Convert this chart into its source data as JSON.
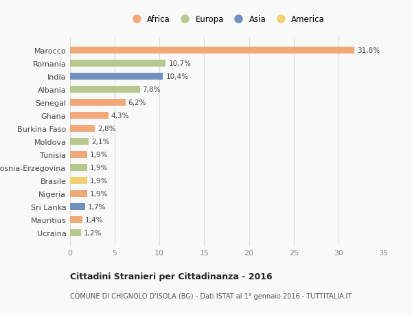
{
  "countries": [
    "Marocco",
    "Romania",
    "India",
    "Albania",
    "Senegal",
    "Ghana",
    "Burkina Faso",
    "Moldova",
    "Tunisia",
    "Bosnia-Erzegovina",
    "Brasile",
    "Nigeria",
    "Sri Lanka",
    "Mauritius",
    "Ucraina"
  ],
  "values": [
    31.8,
    10.7,
    10.4,
    7.8,
    6.2,
    4.3,
    2.8,
    2.1,
    1.9,
    1.9,
    1.9,
    1.9,
    1.7,
    1.4,
    1.2
  ],
  "labels": [
    "31,8%",
    "10,7%",
    "10,4%",
    "7,8%",
    "6,2%",
    "4,3%",
    "2,8%",
    "2,1%",
    "1,9%",
    "1,9%",
    "1,9%",
    "1,9%",
    "1,7%",
    "1,4%",
    "1,2%"
  ],
  "continents": [
    "Africa",
    "Europa",
    "Asia",
    "Europa",
    "Africa",
    "Africa",
    "Africa",
    "Europa",
    "Africa",
    "Europa",
    "America",
    "Africa",
    "Asia",
    "Africa",
    "Europa"
  ],
  "continent_colors": {
    "Africa": "#F0A878",
    "Europa": "#B5C98E",
    "Asia": "#7090C0",
    "America": "#F0D070"
  },
  "legend_order": [
    "Africa",
    "Europa",
    "Asia",
    "America"
  ],
  "title_bold": "Cittadini Stranieri per Cittadinanza - 2016",
  "subtitle": "COMUNE DI CHIGNOLO D'ISOLA (BG) - Dati ISTAT al 1° gennaio 2016 - TUTTITALIA.IT",
  "xlim": [
    0,
    35
  ],
  "xticks": [
    0,
    5,
    10,
    15,
    20,
    25,
    30,
    35
  ],
  "background_color": "#f9f9f9",
  "grid_color": "#dddddd"
}
